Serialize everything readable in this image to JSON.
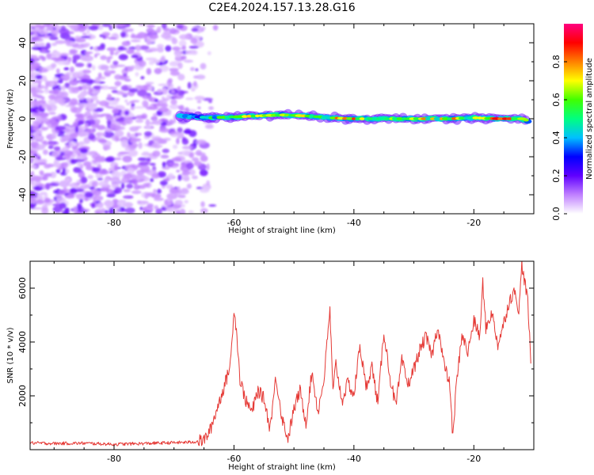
{
  "title": "C2E4.2024.157.13.28.G16",
  "chart_data": [
    {
      "type": "heatmap",
      "xlabel": "Height of straight line (km)",
      "ylabel": "Frequency (Hz)",
      "xlim": [
        -94,
        -10
      ],
      "ylim": [
        -50,
        50
      ],
      "x_ticks": [
        -80,
        -60,
        -40,
        -20
      ],
      "y_ticks": [
        -40,
        -20,
        0,
        20,
        40
      ],
      "colorbar": {
        "label": "Normalized spectral amplitude",
        "range": [
          0,
          1
        ],
        "ticks": [
          0.0,
          0.2,
          0.4,
          0.6,
          0.8
        ],
        "colors": [
          "#ffffff",
          "#c080ff",
          "#6000ff",
          "#0000ff",
          "#00c0ff",
          "#00ff80",
          "#40ff00",
          "#ffff00",
          "#ff8000",
          "#ff0000",
          "#ff0080"
        ]
      },
      "noise_region_x": [
        -94,
        -66
      ],
      "signal_track": {
        "x": [
          -69,
          -66,
          -64,
          -60,
          -56,
          -52,
          -48,
          -44,
          -40,
          -36,
          -32,
          -28,
          -24,
          -20,
          -16,
          -12,
          -11
        ],
        "frequency": [
          1.5,
          1,
          0.5,
          1,
          1.5,
          2,
          1.5,
          0.5,
          0,
          0,
          0,
          0,
          0,
          0.5,
          0,
          0,
          -1
        ],
        "amplitude": [
          0.45,
          0.4,
          0.55,
          0.65,
          0.75,
          0.7,
          0.7,
          0.8,
          0.85,
          0.8,
          0.75,
          0.8,
          0.8,
          0.75,
          0.9,
          0.95,
          0.6
        ]
      }
    },
    {
      "type": "line",
      "xlabel": "Height of straight line (km)",
      "ylabel": "SNR (10 * v/v)",
      "xlim": [
        -94,
        -10
      ],
      "ylim": [
        0,
        7000
      ],
      "x_ticks": [
        -80,
        -60,
        -40,
        -20
      ],
      "y_ticks": [
        2000,
        4000,
        6000
      ],
      "line_color": "#e53935",
      "x": [
        -94,
        -90,
        -85,
        -80,
        -75,
        -70,
        -67,
        -65,
        -64,
        -63,
        -62,
        -61,
        -60.5,
        -60,
        -59.5,
        -59,
        -58,
        -57,
        -56,
        -55,
        -54,
        -53,
        -52,
        -51,
        -50,
        -49,
        -48,
        -47,
        -46,
        -45,
        -44,
        -43.5,
        -43,
        -42,
        -41,
        -40,
        -39,
        -38,
        -37,
        -36,
        -35,
        -34,
        -33,
        -32,
        -31,
        -30,
        -29,
        -28,
        -27,
        -26,
        -25,
        -24,
        -23.5,
        -23,
        -22,
        -21,
        -20,
        -19,
        -18.5,
        -18,
        -17,
        -16,
        -15,
        -14,
        -13,
        -12.5,
        -12,
        -11,
        -10.5
      ],
      "values": [
        250,
        230,
        240,
        200,
        230,
        260,
        280,
        350,
        700,
        1400,
        2100,
        2800,
        3400,
        5300,
        4200,
        2600,
        1800,
        1400,
        2200,
        1900,
        800,
        2700,
        1200,
        400,
        1500,
        2200,
        1000,
        2900,
        1400,
        2600,
        5200,
        2100,
        3200,
        1800,
        2500,
        2000,
        3900,
        2300,
        3100,
        1700,
        4400,
        2700,
        1600,
        3300,
        2400,
        3000,
        3700,
        4200,
        3500,
        4600,
        3200,
        2400,
        400,
        2200,
        4300,
        3600,
        4800,
        4200,
        6200,
        4500,
        5100,
        3900,
        4700,
        5600,
        5900,
        5000,
        6900,
        5500,
        3200
      ]
    }
  ]
}
